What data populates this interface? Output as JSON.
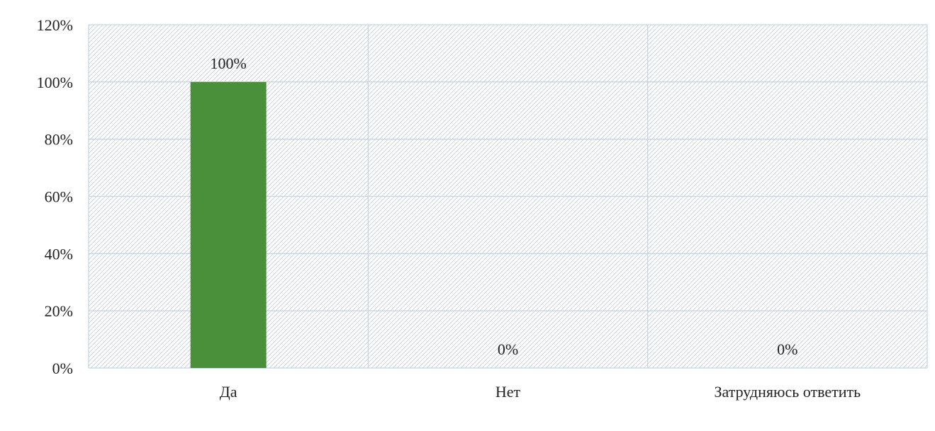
{
  "chart_data": {
    "type": "bar",
    "title": "",
    "xlabel": "",
    "ylabel": "",
    "categories": [
      "Да",
      "Нет",
      "Затрудняюсь ответить"
    ],
    "values": [
      100,
      0,
      0
    ],
    "data_labels": [
      "100%",
      "0%",
      "0%"
    ],
    "ylim": [
      0,
      120
    ],
    "y_ticks": [
      0,
      20,
      40,
      60,
      80,
      100,
      120
    ],
    "y_tick_labels": [
      "0%",
      "20%",
      "40%",
      "60%",
      "80%",
      "100%",
      "120%"
    ],
    "grid": true,
    "plot_background": "hatched",
    "legend": "none",
    "colors": {
      "bar": "#4a8f3a",
      "grid": "#c5d5e6",
      "hatch": "#c5d0dc",
      "text": "#222222"
    }
  }
}
